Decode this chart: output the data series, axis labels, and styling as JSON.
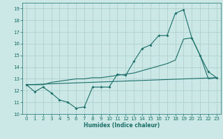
{
  "xlabel": "Humidex (Indice chaleur)",
  "xlim": [
    -0.5,
    23.5
  ],
  "ylim": [
    10,
    19.5
  ],
  "yticks": [
    10,
    11,
    12,
    13,
    14,
    15,
    16,
    17,
    18,
    19
  ],
  "xticks": [
    0,
    1,
    2,
    3,
    4,
    5,
    6,
    7,
    8,
    9,
    10,
    11,
    12,
    13,
    14,
    15,
    16,
    17,
    18,
    19,
    20,
    21,
    22,
    23
  ],
  "background_color": "#cce8e6",
  "grid_color": "#aaccca",
  "line_color": "#1a6e68",
  "line1_x": [
    0,
    1,
    2,
    3,
    4,
    5,
    6,
    7,
    8,
    9,
    10,
    11,
    12,
    13,
    14,
    15,
    16,
    17,
    18,
    19,
    20,
    21,
    22,
    23
  ],
  "line1_y": [
    12.5,
    11.9,
    12.3,
    11.8,
    11.2,
    11.0,
    10.5,
    10.6,
    12.3,
    12.3,
    12.3,
    13.4,
    13.3,
    14.5,
    15.6,
    15.9,
    16.7,
    16.7,
    18.6,
    18.9,
    16.5,
    15.0,
    13.6,
    13.1
  ],
  "line2_x": [
    0,
    1,
    2,
    3,
    4,
    5,
    6,
    7,
    8,
    9,
    10,
    11,
    12,
    13,
    14,
    15,
    16,
    17,
    18,
    19,
    20,
    21,
    22,
    23
  ],
  "line2_y": [
    12.5,
    12.5,
    12.5,
    12.7,
    12.8,
    12.9,
    13.0,
    13.0,
    13.1,
    13.1,
    13.2,
    13.3,
    13.4,
    13.5,
    13.7,
    13.9,
    14.1,
    14.3,
    14.6,
    16.4,
    16.5,
    15.0,
    13.0,
    13.1
  ],
  "line3_x": [
    0,
    23
  ],
  "line3_y": [
    12.5,
    13.1
  ]
}
